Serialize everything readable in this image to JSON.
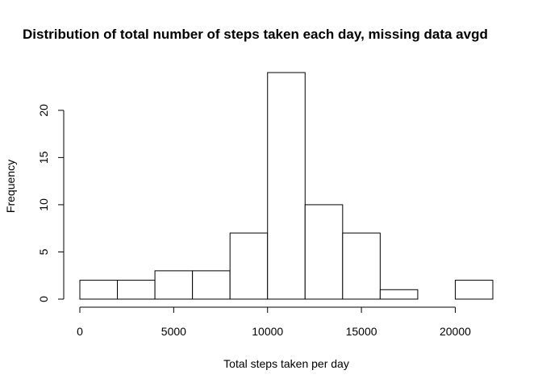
{
  "chart_data": {
    "type": "bar",
    "title": "Distribution of total number of steps taken each day, missing data avgd",
    "xlabel": "Total steps taken per day",
    "ylabel": "Frequency",
    "bin_edges": [
      0,
      2000,
      4000,
      6000,
      8000,
      10000,
      12000,
      14000,
      16000,
      18000,
      20000,
      22000
    ],
    "values": [
      2,
      2,
      3,
      3,
      7,
      24,
      10,
      7,
      1,
      0,
      2
    ],
    "xlim": [
      0,
      22000
    ],
    "ylim": [
      0,
      24
    ],
    "x_ticks": [
      0,
      5000,
      10000,
      15000,
      20000
    ],
    "x_tick_labels": [
      "0",
      "5000",
      "10000",
      "15000",
      "20000"
    ],
    "y_ticks": [
      0,
      5,
      10,
      15,
      20
    ],
    "y_tick_labels": [
      "0",
      "5",
      "10",
      "15",
      "20"
    ],
    "grid": false,
    "legend": "none",
    "bar_fill": "#ffffff",
    "bar_stroke": "#000000"
  }
}
